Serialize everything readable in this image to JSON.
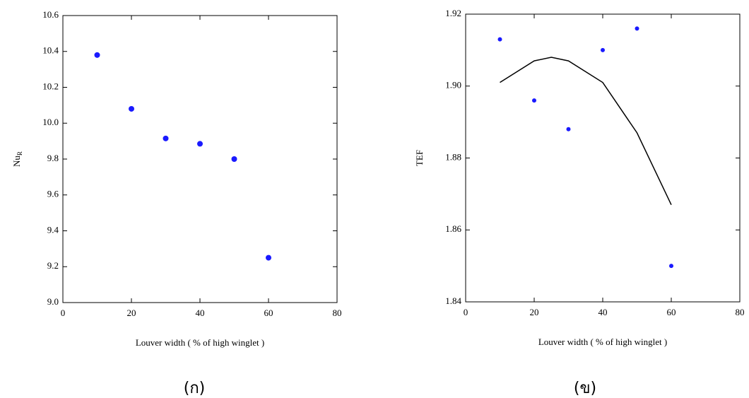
{
  "chart_data": [
    {
      "type": "scatter",
      "ylabel": "Nu",
      "ylabel_sub": "R",
      "xlabel": "Louver width ( % of high winglet )",
      "caption": "(ก)",
      "x": [
        10,
        20,
        30,
        40,
        50,
        60
      ],
      "values": [
        10.38,
        10.08,
        9.915,
        9.885,
        9.8,
        9.25
      ],
      "color": "#1a1aff",
      "xlim": [
        0,
        80
      ],
      "xticks": [
        0,
        20,
        40,
        60,
        80
      ],
      "ylim": [
        9,
        10.6
      ],
      "yticks": [
        {
          "value": 9,
          "label": "9.0"
        },
        9.2,
        9.4,
        9.6,
        9.8,
        {
          "value": 10,
          "label": "10.0"
        },
        10.2,
        10.4,
        10.6
      ]
    },
    {
      "type": "scatter",
      "ylabel": "TEF",
      "xlabel": "Louver width ( % of high winglet )",
      "caption": "(ข)",
      "x": [
        10,
        20,
        30,
        40,
        50,
        60
      ],
      "values": [
        1.913,
        1.896,
        1.888,
        1.91,
        1.916,
        1.85
      ],
      "color": "#1a1aff",
      "curve": {
        "x": [
          10,
          20,
          25,
          30,
          40,
          50,
          60
        ],
        "values": [
          1.901,
          1.907,
          1.908,
          1.907,
          1.901,
          1.887,
          1.867
        ],
        "color": "#000000"
      },
      "xlim": [
        0,
        80
      ],
      "xticks": [
        0,
        20,
        40,
        60,
        80
      ],
      "ylim": [
        1.84,
        1.92
      ],
      "yticks": [
        1.84,
        1.86,
        1.88,
        {
          "value": 1.9,
          "label": "1.90"
        },
        1.92
      ]
    }
  ]
}
